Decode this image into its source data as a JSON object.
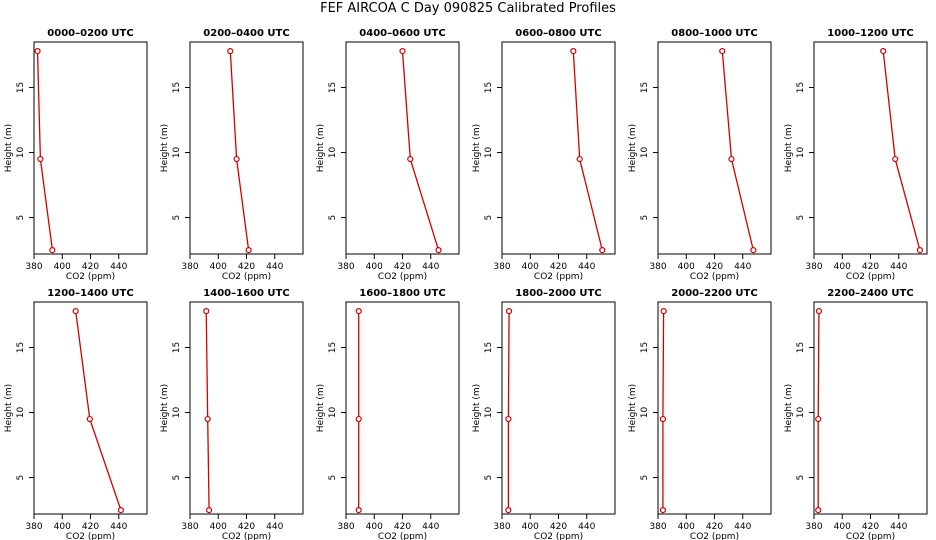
{
  "title": "FEF AIRCOA C  Day 090825  Calibrated Profiles",
  "line_color": "#d40000",
  "chart_data": {
    "type": "line",
    "xlabel": "CO2 (ppm)",
    "ylabel": "Height (m)",
    "xlim": [
      380,
      460
    ],
    "ylim": [
      2.2,
      18.5
    ],
    "xticks": [
      380,
      400,
      420,
      440
    ],
    "yticks": [
      5,
      10,
      15
    ],
    "panels": [
      {
        "label": "0000–0200 UTC",
        "x": [
          382.5,
          384.5,
          393.0
        ],
        "y": [
          17.8,
          9.5,
          2.5
        ]
      },
      {
        "label": "0200–0400 UTC",
        "x": [
          408.5,
          413.0,
          421.5
        ],
        "y": [
          17.8,
          9.5,
          2.5
        ]
      },
      {
        "label": "0400–0600 UTC",
        "x": [
          420.0,
          425.5,
          445.5
        ],
        "y": [
          17.8,
          9.5,
          2.5
        ]
      },
      {
        "label": "0600–0800 UTC",
        "x": [
          430.5,
          435.0,
          451.0
        ],
        "y": [
          17.8,
          9.5,
          2.5
        ]
      },
      {
        "label": "0800–1000 UTC",
        "x": [
          425.5,
          432.0,
          447.5
        ],
        "y": [
          17.8,
          9.5,
          2.5
        ]
      },
      {
        "label": "1000–1200 UTC",
        "x": [
          429.0,
          437.5,
          455.0
        ],
        "y": [
          17.8,
          9.5,
          2.5
        ]
      },
      {
        "label": "1200–1400 UTC",
        "x": [
          409.5,
          419.5,
          441.5
        ],
        "y": [
          17.8,
          9.5,
          2.5
        ]
      },
      {
        "label": "1400–1600 UTC",
        "x": [
          391.5,
          392.5,
          393.5
        ],
        "y": [
          17.8,
          9.5,
          2.5
        ]
      },
      {
        "label": "1600–1800 UTC",
        "x": [
          389.0,
          389.0,
          389.0
        ],
        "y": [
          17.8,
          9.5,
          2.5
        ]
      },
      {
        "label": "1800–2000 UTC",
        "x": [
          385.0,
          384.5,
          384.5
        ],
        "y": [
          17.8,
          9.5,
          2.5
        ]
      },
      {
        "label": "2000–2200 UTC",
        "x": [
          384.0,
          383.5,
          383.5
        ],
        "y": [
          17.8,
          9.5,
          2.5
        ]
      },
      {
        "label": "2200–2400 UTC",
        "x": [
          383.5,
          383.0,
          383.0
        ],
        "y": [
          17.8,
          9.5,
          2.5
        ]
      }
    ]
  }
}
